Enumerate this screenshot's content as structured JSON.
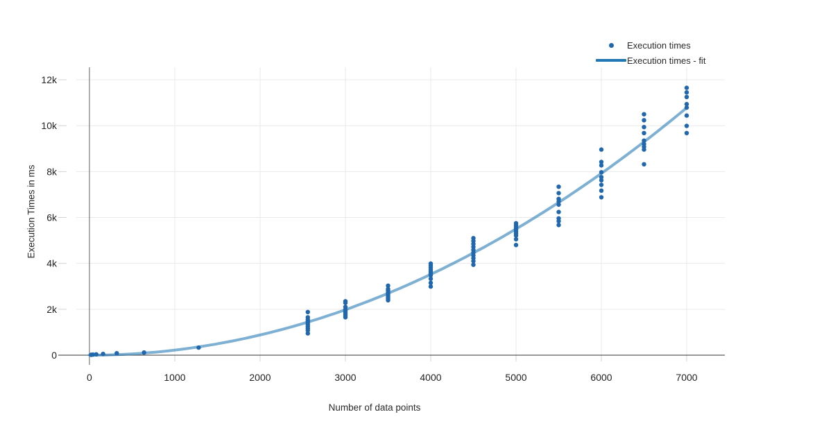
{
  "chart_data": {
    "type": "scatter",
    "title": "",
    "xlabel": "Number of data points",
    "ylabel": "Execution Times in ms",
    "xlim": [
      -154,
      7447
    ],
    "ylim": [
      0,
      12545
    ],
    "grid": true,
    "legend_position": "top-right",
    "x_tick_values": [
      0,
      1000,
      2000,
      3000,
      4000,
      5000,
      6000,
      7000
    ],
    "x_tick_labels": [
      "0",
      "1000",
      "2000",
      "3000",
      "4000",
      "5000",
      "6000",
      "7000"
    ],
    "y_tick_values": [
      0,
      2000,
      4000,
      6000,
      8000,
      10000,
      12000
    ],
    "y_tick_labels": [
      "0",
      "2k",
      "4k",
      "6k",
      "8k",
      "10k",
      "12k"
    ],
    "colors": {
      "point": "#2067ad",
      "fit_line_base": "#1f77b4",
      "fit_line_opacity": 0.58,
      "gridline": "#e9e9e9",
      "tick_mark": "#d2d2d2",
      "zeroline_x": "#606060",
      "zeroline_y": "#333333",
      "tick_label": "#222222"
    },
    "series": [
      {
        "name": "Execution times",
        "type": "scatter",
        "marker": "dot",
        "points": [
          [
            20,
            15
          ],
          [
            40,
            25
          ],
          [
            80,
            35
          ],
          [
            160,
            55
          ],
          [
            320,
            85
          ],
          [
            640,
            115
          ],
          [
            1280,
            330
          ],
          [
            2560,
            1880
          ],
          [
            2560,
            1650
          ],
          [
            2560,
            1560
          ],
          [
            2560,
            1480
          ],
          [
            2560,
            1400
          ],
          [
            2560,
            1320
          ],
          [
            2560,
            1240
          ],
          [
            2560,
            1160
          ],
          [
            2560,
            1080
          ],
          [
            2560,
            950
          ],
          [
            3000,
            2350
          ],
          [
            3000,
            2280
          ],
          [
            3000,
            2100
          ],
          [
            3000,
            1990
          ],
          [
            3000,
            1920
          ],
          [
            3000,
            1850
          ],
          [
            3000,
            1780
          ],
          [
            3000,
            1710
          ],
          [
            3000,
            1650
          ],
          [
            3500,
            3030
          ],
          [
            3500,
            2880
          ],
          [
            3500,
            2810
          ],
          [
            3500,
            2740
          ],
          [
            3500,
            2670
          ],
          [
            3500,
            2600
          ],
          [
            3500,
            2530
          ],
          [
            3500,
            2460
          ],
          [
            3500,
            2390
          ],
          [
            4000,
            3990
          ],
          [
            4000,
            3900
          ],
          [
            4000,
            3810
          ],
          [
            4000,
            3720
          ],
          [
            4000,
            3640
          ],
          [
            4000,
            3560
          ],
          [
            4000,
            3480
          ],
          [
            4000,
            3330
          ],
          [
            4000,
            3150
          ],
          [
            4000,
            2990
          ],
          [
            4500,
            5100
          ],
          [
            4500,
            4980
          ],
          [
            4500,
            4850
          ],
          [
            4500,
            4720
          ],
          [
            4500,
            4590
          ],
          [
            4500,
            4470
          ],
          [
            4500,
            4350
          ],
          [
            4500,
            4230
          ],
          [
            4500,
            4100
          ],
          [
            4500,
            3940
          ],
          [
            5000,
            5750
          ],
          [
            5000,
            5660
          ],
          [
            5000,
            5570
          ],
          [
            5000,
            5480
          ],
          [
            5000,
            5390
          ],
          [
            5000,
            5300
          ],
          [
            5000,
            5210
          ],
          [
            5000,
            5050
          ],
          [
            5000,
            4800
          ],
          [
            5500,
            7340
          ],
          [
            5500,
            7060
          ],
          [
            5500,
            6810
          ],
          [
            5500,
            6700
          ],
          [
            5500,
            6560
          ],
          [
            5500,
            6240
          ],
          [
            5500,
            5960
          ],
          [
            5500,
            5840
          ],
          [
            5500,
            5670
          ],
          [
            6000,
            8960
          ],
          [
            6000,
            8420
          ],
          [
            6000,
            8270
          ],
          [
            6000,
            7970
          ],
          [
            6000,
            7760
          ],
          [
            6000,
            7620
          ],
          [
            6000,
            7420
          ],
          [
            6000,
            7170
          ],
          [
            6000,
            6880
          ],
          [
            6500,
            10500
          ],
          [
            6500,
            10240
          ],
          [
            6500,
            9940
          ],
          [
            6500,
            9680
          ],
          [
            6500,
            9350
          ],
          [
            6500,
            9200
          ],
          [
            6500,
            9080
          ],
          [
            6500,
            8960
          ],
          [
            6500,
            8320
          ],
          [
            7000,
            11650
          ],
          [
            7000,
            11450
          ],
          [
            7000,
            11250
          ],
          [
            7000,
            10940
          ],
          [
            7000,
            10790
          ],
          [
            7000,
            10440
          ],
          [
            7000,
            9990
          ],
          [
            7000,
            9680
          ]
        ]
      },
      {
        "name": "Execution times - fit",
        "type": "line",
        "fit": "quadratic",
        "coefficients": {
          "a": 0.00022,
          "b": 0,
          "c": 0
        },
        "x_start": 0,
        "x_end": 7000
      }
    ]
  },
  "legend": {
    "items": [
      {
        "label": "Execution times"
      },
      {
        "label": "Execution times - fit"
      }
    ]
  }
}
